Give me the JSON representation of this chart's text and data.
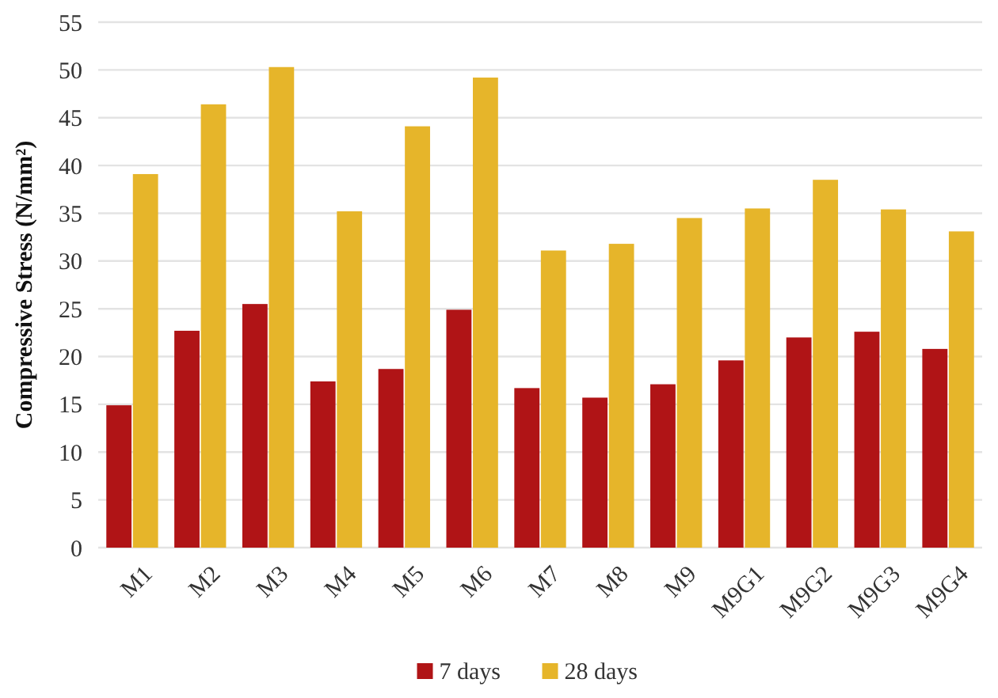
{
  "chart_data": {
    "type": "bar",
    "ylabel": "Compressive Stress (N/mm²)",
    "categories": [
      "M1",
      "M2",
      "M3",
      "M4",
      "M5",
      "M6",
      "M7",
      "M8",
      "M9",
      "M9G1",
      "M9G2",
      "M9G3",
      "M9G4"
    ],
    "series": [
      {
        "name": "7 days",
        "color": "#b01416",
        "values": [
          14.9,
          22.7,
          25.5,
          17.4,
          18.7,
          24.9,
          16.7,
          15.7,
          17.1,
          19.6,
          22.0,
          22.6,
          20.8
        ]
      },
      {
        "name": "28 days",
        "color": "#e6b52a",
        "values": [
          39.1,
          46.4,
          50.3,
          35.2,
          44.1,
          49.2,
          31.1,
          31.8,
          34.5,
          35.5,
          38.5,
          35.4,
          33.1
        ]
      }
    ],
    "ylim": [
      0,
      55
    ],
    "yticks": [
      0,
      5,
      10,
      15,
      20,
      25,
      30,
      35,
      40,
      45,
      50,
      55
    ],
    "grid": "y",
    "legend": "bottom"
  }
}
